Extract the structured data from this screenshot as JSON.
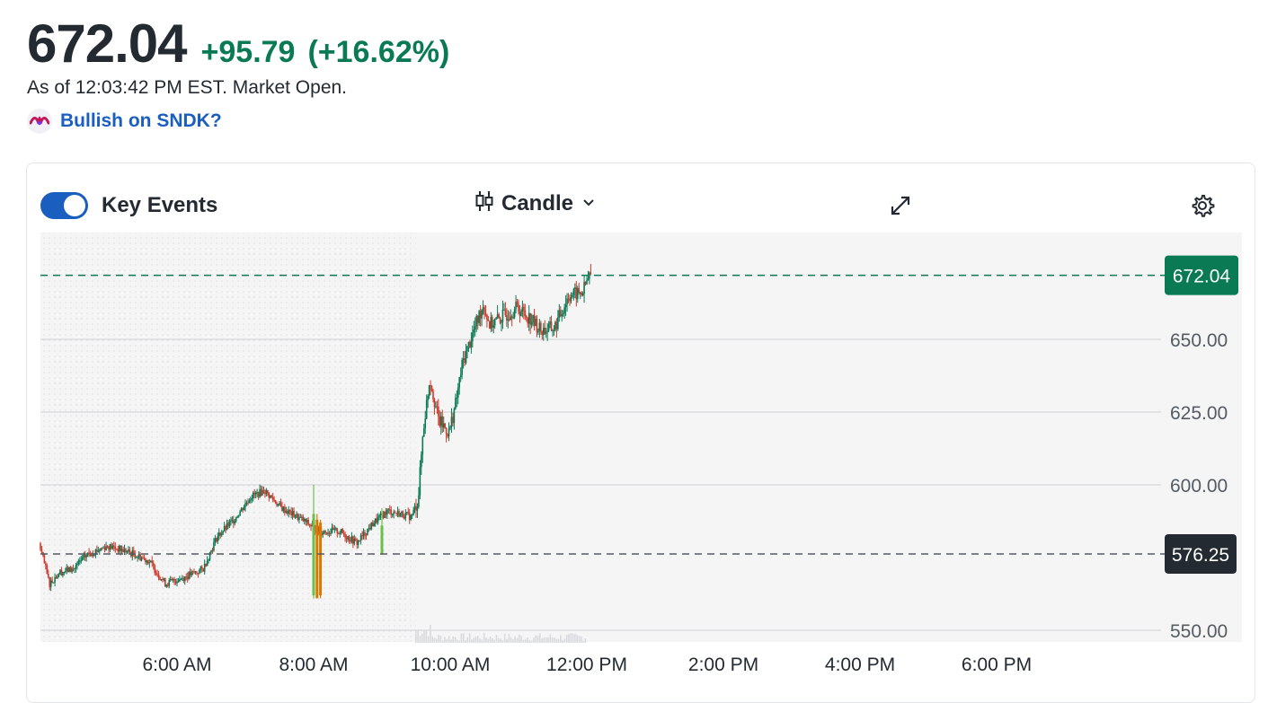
{
  "quote": {
    "price": "672.04",
    "change": "+95.79",
    "change_pct": "(+16.62%)",
    "as_of": "As of 12:03:42 PM EST. Market Open.",
    "bullish_link": "Bullish on SNDK?"
  },
  "toolbar": {
    "key_events_label": "Key Events",
    "key_events_on": true,
    "chart_type_label": "Candle",
    "icons": [
      "candlestick-icon",
      "chevron-down-icon",
      "expand-icon",
      "gear-icon"
    ]
  },
  "colors": {
    "up": "#0a7a55",
    "down": "#d0392b",
    "accent": "#1a5ec0",
    "prev_close_badge": "#232a31"
  },
  "chart_data": {
    "type": "candlestick",
    "y_ticks": [
      "550.00",
      "600.00",
      "625.00",
      "650.00"
    ],
    "x_ticks": [
      "6:00 AM",
      "8:00 AM",
      "10:00 AM",
      "12:00 PM",
      "2:00 PM",
      "4:00 PM",
      "6:00 PM"
    ],
    "ylim": [
      545,
      688
    ],
    "last_price": 672.04,
    "last_price_label": "672.04",
    "previous_close": 576.25,
    "previous_close_label": "576.25",
    "premarket_shaded": true,
    "grid": "horizontal",
    "path": [
      {
        "t": 4.0,
        "p": 580
      },
      {
        "t": 4.15,
        "p": 566
      },
      {
        "t": 4.3,
        "p": 570
      },
      {
        "t": 4.5,
        "p": 571
      },
      {
        "t": 4.7,
        "p": 576
      },
      {
        "t": 5.0,
        "p": 579
      },
      {
        "t": 5.3,
        "p": 577
      },
      {
        "t": 5.6,
        "p": 574
      },
      {
        "t": 5.85,
        "p": 566
      },
      {
        "t": 6.1,
        "p": 568
      },
      {
        "t": 6.4,
        "p": 571
      },
      {
        "t": 6.6,
        "p": 582
      },
      {
        "t": 6.85,
        "p": 588
      },
      {
        "t": 7.1,
        "p": 596
      },
      {
        "t": 7.3,
        "p": 598
      },
      {
        "t": 7.55,
        "p": 592
      },
      {
        "t": 7.85,
        "p": 588
      },
      {
        "t": 8.1,
        "p": 584
      },
      {
        "t": 8.4,
        "p": 584
      },
      {
        "t": 8.65,
        "p": 580
      },
      {
        "t": 8.9,
        "p": 587
      },
      {
        "t": 9.1,
        "p": 591
      },
      {
        "t": 9.3,
        "p": 590
      },
      {
        "t": 9.45,
        "p": 589
      },
      {
        "t": 9.55,
        "p": 595
      },
      {
        "t": 9.62,
        "p": 618
      },
      {
        "t": 9.72,
        "p": 637
      },
      {
        "t": 9.85,
        "p": 622
      },
      {
        "t": 10.0,
        "p": 618
      },
      {
        "t": 10.1,
        "p": 628
      },
      {
        "t": 10.2,
        "p": 642
      },
      {
        "t": 10.35,
        "p": 652
      },
      {
        "t": 10.5,
        "p": 662
      },
      {
        "t": 10.6,
        "p": 655
      },
      {
        "t": 10.8,
        "p": 658
      },
      {
        "t": 11.0,
        "p": 661
      },
      {
        "t": 11.2,
        "p": 657
      },
      {
        "t": 11.35,
        "p": 653
      },
      {
        "t": 11.55,
        "p": 654
      },
      {
        "t": 11.75,
        "p": 665
      },
      {
        "t": 11.95,
        "p": 666
      },
      {
        "t": 12.06,
        "p": 672
      }
    ],
    "spikes": [
      {
        "t": 8.0,
        "open": 590,
        "close": 562,
        "high": 600,
        "low": 561,
        "dir": "up"
      },
      {
        "t": 8.05,
        "open": 588,
        "close": 561,
        "high": 590,
        "low": 561,
        "dir": "down"
      },
      {
        "t": 8.1,
        "open": 587,
        "close": 562,
        "high": 588,
        "low": 561,
        "dir": "down"
      },
      {
        "t": 9.0,
        "open": 586,
        "close": 576,
        "high": 592,
        "low": 576,
        "dir": "up"
      }
    ]
  }
}
